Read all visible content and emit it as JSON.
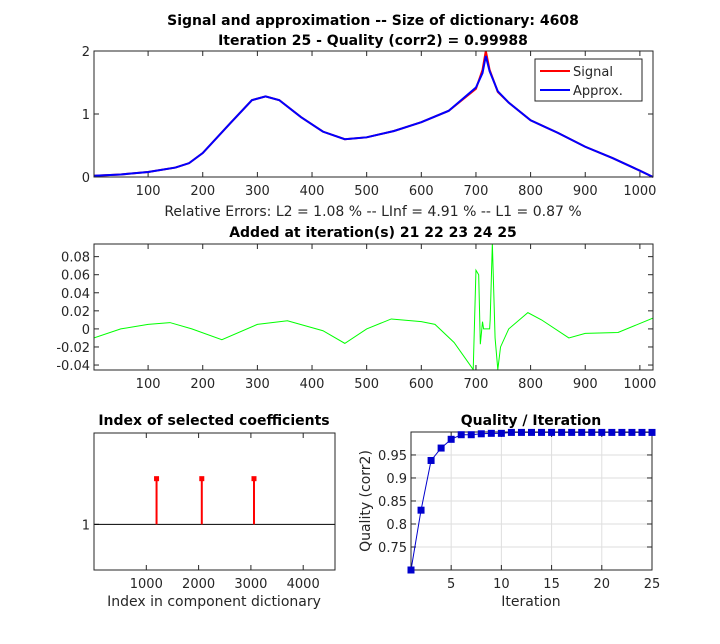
{
  "chart_data": [
    {
      "type": "line",
      "title": [
        "Signal and approximation -- Size of dictionary: 4608",
        "Iteration 25 - Quality (corr2) = 0.99988"
      ],
      "xlabel": "Relative Errors:   L2 = 1.08 % --  LInf = 4.91 %  --  L1 = 0.87 %",
      "xlim": [
        1,
        1024
      ],
      "ylim": [
        0,
        2
      ],
      "xticks": [
        "100",
        "200",
        "300",
        "400",
        "500",
        "600",
        "700",
        "800",
        "900",
        "1000"
      ],
      "yticks": [
        "0",
        "1",
        "2"
      ],
      "legend": "top-right",
      "series": [
        {
          "name": "Signal",
          "color": "#ff0000",
          "x": [
            1,
            50,
            100,
            150,
            175,
            200,
            250,
            290,
            315,
            340,
            380,
            420,
            460,
            500,
            550,
            600,
            650,
            700,
            712,
            718,
            725,
            740,
            760,
            800,
            850,
            900,
            950,
            1000,
            1024
          ],
          "y": [
            0.02,
            0.04,
            0.08,
            0.15,
            0.22,
            0.38,
            0.85,
            1.22,
            1.28,
            1.22,
            0.95,
            0.72,
            0.6,
            0.63,
            0.73,
            0.87,
            1.05,
            1.4,
            1.7,
            2.0,
            1.7,
            1.35,
            1.18,
            0.9,
            0.7,
            0.48,
            0.3,
            0.1,
            0.0
          ]
        },
        {
          "name": "Approx.",
          "color": "#0000ff",
          "x": [
            1,
            50,
            100,
            150,
            175,
            200,
            250,
            290,
            315,
            340,
            380,
            420,
            460,
            500,
            550,
            600,
            650,
            700,
            712,
            718,
            725,
            740,
            760,
            800,
            850,
            900,
            950,
            1000,
            1024
          ],
          "y": [
            0.02,
            0.04,
            0.08,
            0.15,
            0.22,
            0.38,
            0.85,
            1.22,
            1.28,
            1.22,
            0.95,
            0.72,
            0.6,
            0.63,
            0.73,
            0.87,
            1.05,
            1.42,
            1.65,
            1.92,
            1.68,
            1.36,
            1.18,
            0.9,
            0.7,
            0.48,
            0.3,
            0.1,
            0.0
          ]
        }
      ]
    },
    {
      "type": "line",
      "title": "Added at iteration(s) 21  22  23  24  25",
      "xlim": [
        1,
        1024
      ],
      "ylim": [
        -0.0455,
        0.094
      ],
      "xticks": [
        "100",
        "200",
        "300",
        "400",
        "500",
        "600",
        "700",
        "800",
        "900",
        "1000"
      ],
      "yticks": [
        "-0.04",
        "-0.02",
        "0",
        "0.02",
        "0.04",
        "0.06",
        "0.08"
      ],
      "series": [
        {
          "color": "#00ff00",
          "x": [
            1,
            50,
            100,
            140,
            180,
            235,
            300,
            355,
            420,
            460,
            500,
            545,
            600,
            625,
            660,
            695,
            700,
            705,
            708,
            712,
            714,
            725,
            726,
            730,
            735,
            740,
            745,
            760,
            795,
            820,
            870,
            900,
            960,
            1024
          ],
          "y": [
            -0.01,
            0,
            0.005,
            0.007,
            0.0,
            -0.012,
            0.005,
            0.009,
            -0.002,
            -0.016,
            0.0,
            0.011,
            0.008,
            0.005,
            -0.015,
            -0.045,
            0.065,
            0.06,
            -0.017,
            0.008,
            0.0,
            0.0,
            0.01,
            0.095,
            -0.01,
            -0.045,
            -0.02,
            0.0,
            0.018,
            0.01,
            -0.01,
            -0.005,
            -0.004,
            0.012
          ]
        }
      ]
    },
    {
      "type": "stem",
      "title": "Index of selected coefficients",
      "xlabel": "Index in component dictionary",
      "xlim": [
        0,
        4608
      ],
      "ylim": [
        0.5,
        2
      ],
      "baseline": 1,
      "xticks": [
        "1000",
        "2000",
        "3000",
        "4000"
      ],
      "yticks": [
        "1"
      ],
      "color": "#ff0000",
      "x": [
        1196,
        2061,
        3059
      ],
      "values": [
        1.5,
        1.5,
        1.5
      ]
    },
    {
      "type": "line",
      "title": "Quality / Iteration",
      "xlabel": "Iteration",
      "ylabel": "Quality (corr2)",
      "xlim": [
        1,
        25
      ],
      "ylim": [
        0.7,
        0.9999
      ],
      "grid": true,
      "xticks": [
        "5",
        "10",
        "15",
        "20",
        "25"
      ],
      "yticks": [
        "0.75",
        "0.8",
        "0.85",
        "0.9",
        "0.95"
      ],
      "color": "#0000cd",
      "x": [
        1,
        2,
        3,
        4,
        5,
        6,
        7,
        8,
        9,
        10,
        11,
        12,
        13,
        14,
        15,
        16,
        17,
        18,
        19,
        20,
        21,
        22,
        23,
        24,
        25
      ],
      "y": [
        0.7,
        0.83,
        0.938,
        0.965,
        0.984,
        0.994,
        0.994,
        0.996,
        0.997,
        0.997,
        0.999,
        0.999,
        0.999,
        0.999,
        0.999,
        0.999,
        0.999,
        0.999,
        0.999,
        0.999,
        0.999,
        0.999,
        0.999,
        0.999,
        0.999
      ]
    }
  ]
}
